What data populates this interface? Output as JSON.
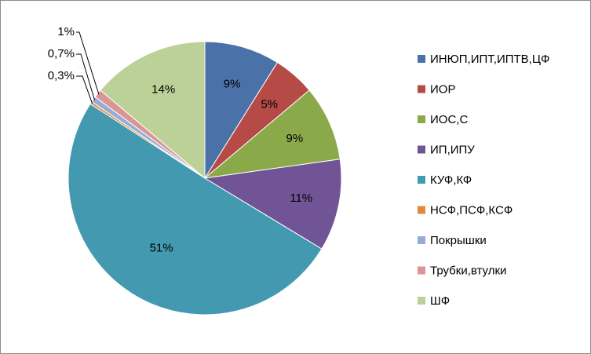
{
  "chart_data": {
    "type": "pie",
    "slices": [
      {
        "name": "ИНЮП,ИПТ,ИПТВ,ЦФ",
        "value": 9,
        "label": "9%",
        "color": "#4a72a8"
      },
      {
        "name": "ИОР",
        "value": 5,
        "label": "5%",
        "color": "#b54a46"
      },
      {
        "name": "ИОС,С",
        "value": 9,
        "label": "9%",
        "color": "#8aaa4a"
      },
      {
        "name": "ИП,ИПУ",
        "value": 11,
        "label": "11%",
        "color": "#715496"
      },
      {
        "name": "КУФ,КФ",
        "value": 51,
        "label": "51%",
        "color": "#4299b0"
      },
      {
        "name": "НСФ,ПСФ,КСФ",
        "value": 0.3,
        "label": "0,3%",
        "color": "#e08a3c"
      },
      {
        "name": "Покрышки",
        "value": 0.7,
        "label": "0,7%",
        "color": "#94acd6"
      },
      {
        "name": "Трубки,втулки",
        "value": 1,
        "label": "1%",
        "color": "#d99694"
      },
      {
        "name": "ШФ",
        "value": 14,
        "label": "14%",
        "color": "#bcd197"
      }
    ],
    "legend_position": "right"
  }
}
